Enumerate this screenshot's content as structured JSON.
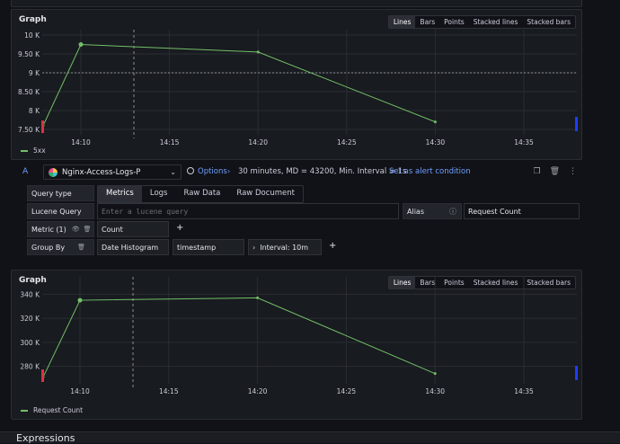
{
  "graph1": {
    "title": "Graph",
    "viz_options": [
      "Lines",
      "Bars",
      "Points",
      "Stacked lines",
      "Stacked bars"
    ],
    "active_option": "Lines",
    "legend": "5xx",
    "series_color": "#73bf69",
    "chart_data": {
      "type": "line",
      "series": [
        {
          "name": "5xx",
          "x": [
            "14:05",
            "14:10",
            "14:20",
            "14:30"
          ],
          "values": [
            7600,
            9750,
            9550,
            7700
          ]
        }
      ],
      "y_ticks": [
        "10 K",
        "9.50 K",
        "9 K",
        "8.50 K",
        "8 K",
        "7.50 K"
      ],
      "x_ticks": [
        "14:10",
        "14:15",
        "14:20",
        "14:25",
        "14:30",
        "14:35"
      ],
      "ylim": [
        7500,
        10000
      ]
    }
  },
  "query": {
    "letter": "A",
    "datasource": "Nginx-Access-Logs-P",
    "options_label": "Options",
    "options_summary": "30 minutes, MD = 43200, Min. Interval = 1s",
    "alert_link": "Set as alert condition",
    "query_type_label": "Query type",
    "query_types": [
      "Metrics",
      "Logs",
      "Raw Data",
      "Raw Document"
    ],
    "active_query_type": "Metrics",
    "lucene_label": "Lucene Query",
    "lucene_placeholder": "Enter a lucene query",
    "alias_label": "Alias",
    "alias_value": "Request Count",
    "metric_label": "Metric (1)",
    "metric_value": "Count",
    "group_by_label": "Group By",
    "group_by_type": "Date Histogram",
    "group_by_field": "timestamp",
    "interval_text": "Interval: 10m"
  },
  "graph2": {
    "title": "Graph",
    "viz_options": [
      "Lines",
      "Bars",
      "Points",
      "Stacked lines",
      "Stacked bars"
    ],
    "active_option": "Lines",
    "legend": "Request Count",
    "series_color": "#73bf69",
    "chart_data": {
      "type": "line",
      "series": [
        {
          "name": "Request Count",
          "x": [
            "14:05",
            "14:10",
            "14:20",
            "14:30"
          ],
          "values": [
            271000,
            335000,
            337000,
            274000
          ]
        }
      ],
      "y_ticks": [
        "340 K",
        "320 K",
        "300 K",
        "280 K"
      ],
      "x_ticks": [
        "14:10",
        "14:15",
        "14:20",
        "14:25",
        "14:30",
        "14:35"
      ],
      "ylim": [
        270000,
        350000
      ]
    }
  },
  "footer": {
    "expressions_label": "Expressions"
  }
}
